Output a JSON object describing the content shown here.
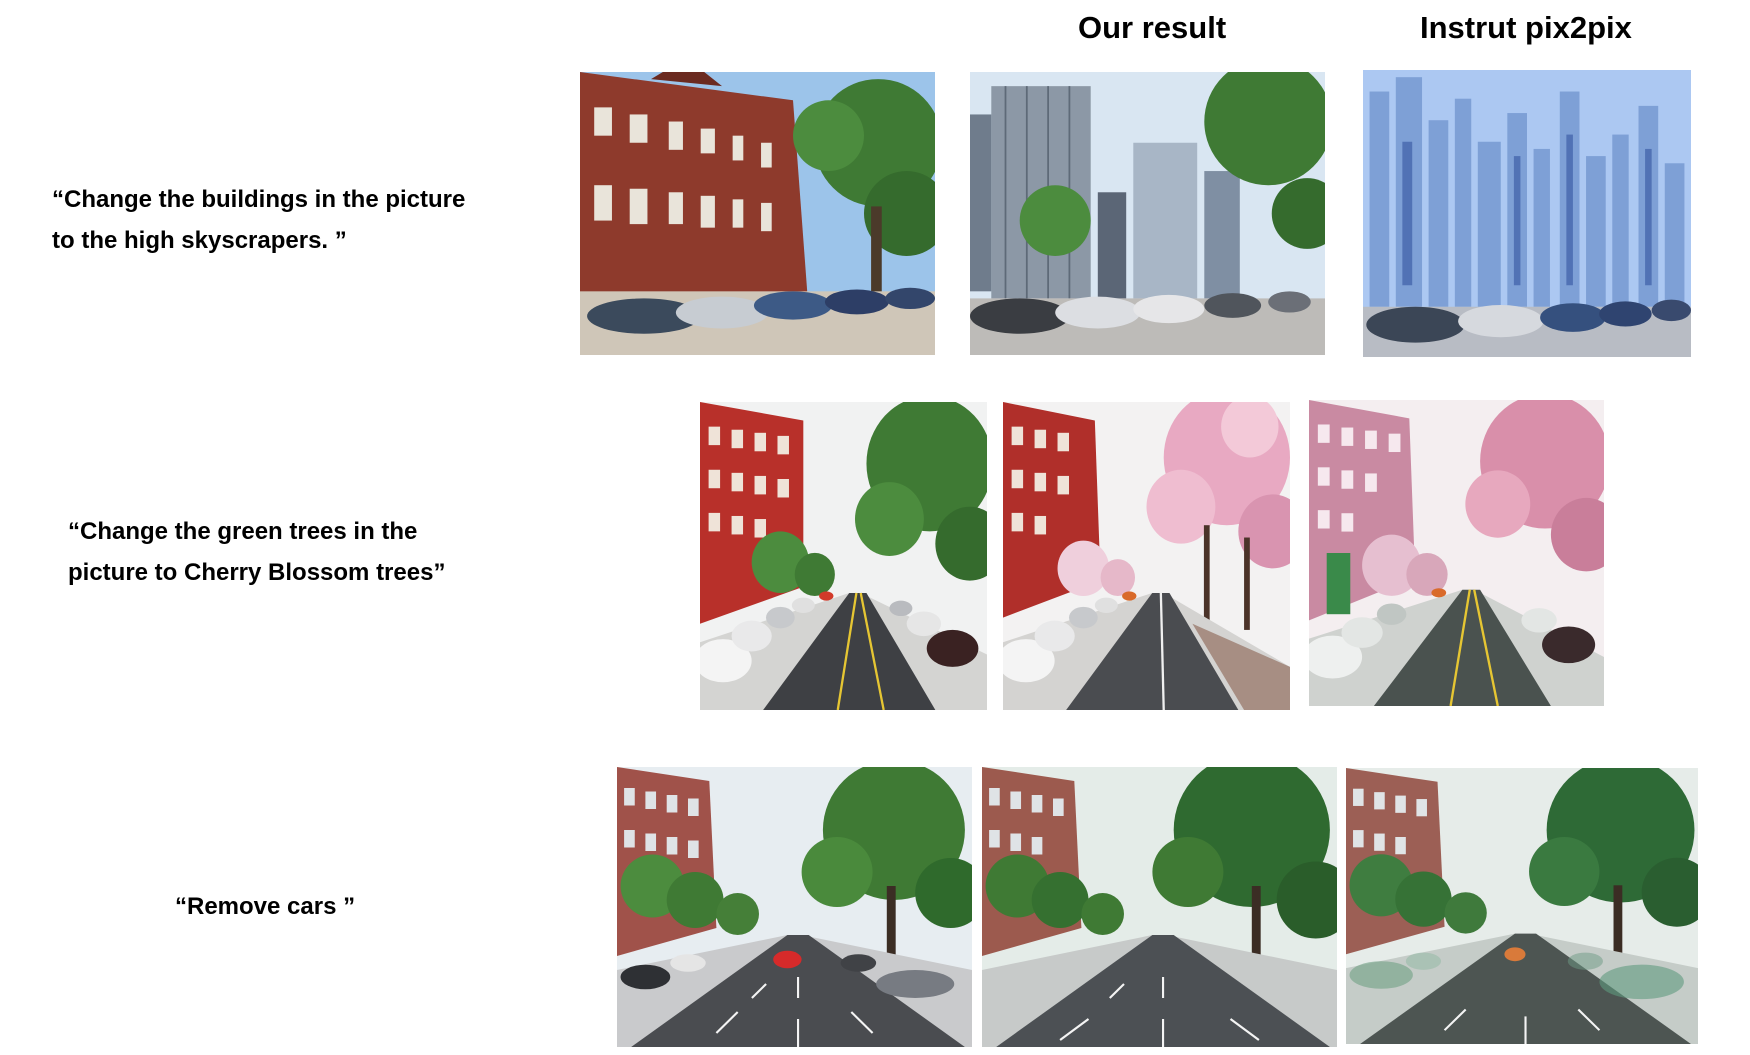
{
  "headers": {
    "ours": "Our result",
    "baseline": "Instrut pix2pix"
  },
  "rows": [
    {
      "prompt_lines": [
        "“Change the buildings in the picture",
        " to the high skyscrapers. ”"
      ],
      "images": [
        "input: red brick row houses with green tree and parked cars",
        "our result: glass skyscrapers with green trees and parked cars",
        "instruct pix2pix: blue glass skyscrapers with parked cars"
      ]
    },
    {
      "prompt_lines": [
        "“Change the green trees in the",
        "picture to Cherry Blossom trees”"
      ],
      "images": [
        "input: red brick street with green trees and parked cars",
        "our result: red brick street with pink cherry blossom trees",
        "instruct pix2pix: pink tinted street with cherry blossom trees"
      ]
    },
    {
      "prompt_lines": [
        "“Remove cars ”"
      ],
      "images": [
        "input: tree-lined avenue with cars on the road",
        "our result: tree-lined avenue with empty road",
        "instruct pix2pix: tree-lined avenue with faded car remnants"
      ]
    }
  ],
  "colors": {
    "brick": "#8e3a2c",
    "sky": "#9cc4ea",
    "leaf": "#3f7a34",
    "blossom": "#e8a9c2",
    "glass": "#7ea0d6",
    "road": "#4a4c50"
  }
}
